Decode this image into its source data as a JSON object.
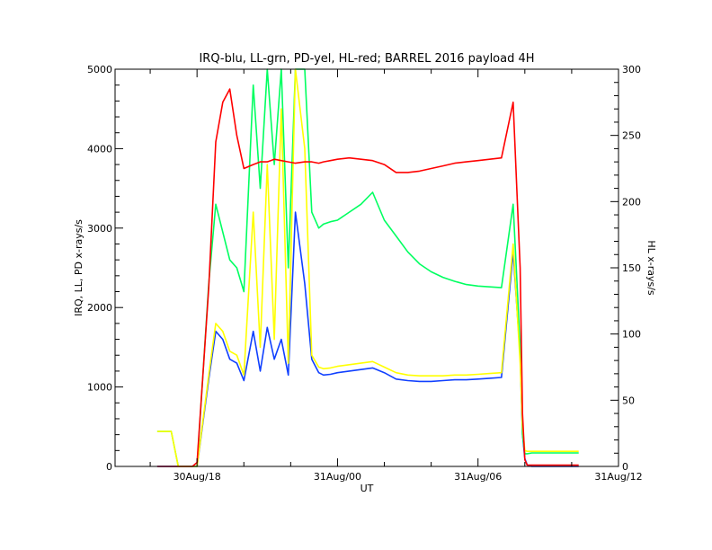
{
  "chart_data": {
    "type": "line",
    "title": "IRQ-blu, LL-grn, PD-yel, HL-red; BARREL 2016 payload 4H",
    "xlabel": "UT",
    "ylabel": "IRQ, LL, PD x-rays/s",
    "y2label": "HL x-rays/s",
    "ylim": [
      0,
      5000
    ],
    "y2lim": [
      0,
      300
    ],
    "xlim_hours_ut": [
      14.5,
      36.0
    ],
    "xticks": [
      {
        "value": 18,
        "label": "30Aug/18"
      },
      {
        "value": 24,
        "label": "31Aug/00"
      },
      {
        "value": 30,
        "label": "31Aug/06"
      },
      {
        "value": 36,
        "label": "31Aug/12"
      }
    ],
    "yticks": [
      0,
      1000,
      2000,
      3000,
      4000,
      5000
    ],
    "y2ticks": [
      0,
      50,
      100,
      150,
      200,
      250,
      300
    ],
    "colors": {
      "IRQ": "#1040ff",
      "LL": "#00ff60",
      "PD": "#ffff00",
      "HL": "#ff0000"
    },
    "series": [
      {
        "axis": "left",
        "x": [
          16.3,
          16.6,
          16.9,
          17.2,
          17.5,
          17.8,
          18.0,
          18.5,
          18.8,
          19.1,
          19.4,
          19.7,
          20.0,
          20.4,
          20.7,
          21.0,
          21.3,
          21.6,
          21.9,
          22.2,
          22.6,
          22.9,
          23.2,
          23.4,
          23.7,
          24.0,
          24.5,
          25.0,
          25.5,
          26.0,
          26.5,
          27.0,
          27.5,
          28.0,
          28.5,
          29.0,
          29.5,
          30.0,
          30.5,
          31.0,
          31.5,
          31.8,
          31.9,
          32.0,
          32.1,
          32.3,
          32.6,
          33.0,
          33.5,
          34.0,
          34.3
        ],
        "y": [
          0,
          0,
          0,
          0,
          0,
          0,
          0,
          1100,
          1700,
          1600,
          1350,
          1300,
          1080,
          1700,
          1200,
          1750,
          1350,
          1600,
          1150,
          3200,
          2300,
          1350,
          1180,
          1150,
          1160,
          1180,
          1200,
          1220,
          1240,
          1180,
          1100,
          1080,
          1070,
          1070,
          1080,
          1090,
          1090,
          1100,
          1110,
          1120,
          2700,
          1400,
          400,
          100,
          20,
          0,
          0,
          0,
          0,
          0,
          0
        ]
      },
      {
        "axis": "left",
        "x": [
          16.3,
          16.6,
          16.9,
          17.2,
          17.5,
          17.8,
          18.0,
          18.5,
          18.8,
          19.1,
          19.4,
          19.7,
          20.0,
          20.4,
          20.7,
          21.0,
          21.3,
          21.6,
          21.9,
          22.2,
          22.6,
          22.9,
          23.2,
          23.4,
          23.7,
          24.0,
          24.5,
          25.0,
          25.5,
          26.0,
          26.5,
          27.0,
          27.5,
          28.0,
          28.5,
          29.0,
          29.5,
          30.0,
          30.5,
          31.0,
          31.5,
          31.8,
          31.9,
          32.0,
          32.1,
          32.3,
          32.6,
          33.0,
          33.5,
          34.0,
          34.3
        ],
        "y": [
          440,
          440,
          440,
          0,
          0,
          0,
          0,
          2300,
          3300,
          2950,
          2600,
          2500,
          2200,
          4800,
          3500,
          5000,
          3800,
          5000,
          2500,
          5000,
          5000,
          3200,
          3000,
          3050,
          3080,
          3100,
          3200,
          3300,
          3450,
          3100,
          2900,
          2700,
          2550,
          2450,
          2380,
          2330,
          2290,
          2270,
          2260,
          2250,
          3300,
          1500,
          400,
          160,
          160,
          170,
          170,
          170,
          170,
          170,
          170
        ]
      },
      {
        "axis": "left",
        "x": [
          16.3,
          16.6,
          16.9,
          17.2,
          17.5,
          17.8,
          18.0,
          18.5,
          18.8,
          19.1,
          19.4,
          19.7,
          20.0,
          20.4,
          20.7,
          21.0,
          21.3,
          21.6,
          21.9,
          22.2,
          22.6,
          22.9,
          23.2,
          23.4,
          23.7,
          24.0,
          24.5,
          25.0,
          25.5,
          26.0,
          26.5,
          27.0,
          27.5,
          28.0,
          28.5,
          29.0,
          29.5,
          30.0,
          30.5,
          31.0,
          31.5,
          31.8,
          31.9,
          32.0,
          32.1,
          32.3,
          32.6,
          33.0,
          33.5,
          34.0,
          34.3
        ],
        "y": [
          440,
          440,
          440,
          0,
          0,
          0,
          0,
          1150,
          1800,
          1700,
          1450,
          1400,
          1150,
          3200,
          1500,
          3800,
          1600,
          4500,
          1300,
          5000,
          4000,
          1400,
          1250,
          1230,
          1240,
          1260,
          1280,
          1300,
          1320,
          1250,
          1180,
          1150,
          1140,
          1140,
          1140,
          1150,
          1150,
          1160,
          1170,
          1180,
          2800,
          1300,
          500,
          200,
          190,
          190,
          190,
          190,
          190,
          190,
          190
        ]
      },
      {
        "axis": "right",
        "x": [
          16.3,
          16.6,
          16.9,
          17.2,
          17.5,
          17.8,
          18.0,
          18.5,
          18.8,
          19.1,
          19.4,
          19.7,
          20.0,
          20.4,
          20.7,
          21.0,
          21.3,
          21.6,
          21.9,
          22.2,
          22.6,
          22.9,
          23.2,
          23.4,
          23.7,
          24.0,
          24.5,
          25.0,
          25.5,
          26.0,
          26.5,
          27.0,
          27.5,
          28.0,
          28.5,
          29.0,
          29.5,
          30.0,
          30.5,
          31.0,
          31.5,
          31.8,
          31.9,
          32.0,
          32.1,
          32.3,
          32.6,
          33.0,
          33.5,
          34.0,
          34.3
        ],
        "y": [
          0,
          0,
          0,
          0,
          0,
          0,
          3,
          135,
          245,
          275,
          285,
          250,
          225,
          228,
          230,
          230,
          232,
          231,
          230,
          229,
          230,
          230,
          229,
          230,
          231,
          232,
          233,
          232,
          231,
          228,
          222,
          222,
          223,
          225,
          227,
          229,
          230,
          231,
          232,
          233,
          275,
          150,
          40,
          5,
          1,
          1,
          1,
          1,
          1,
          1,
          1
        ]
      }
    ]
  }
}
